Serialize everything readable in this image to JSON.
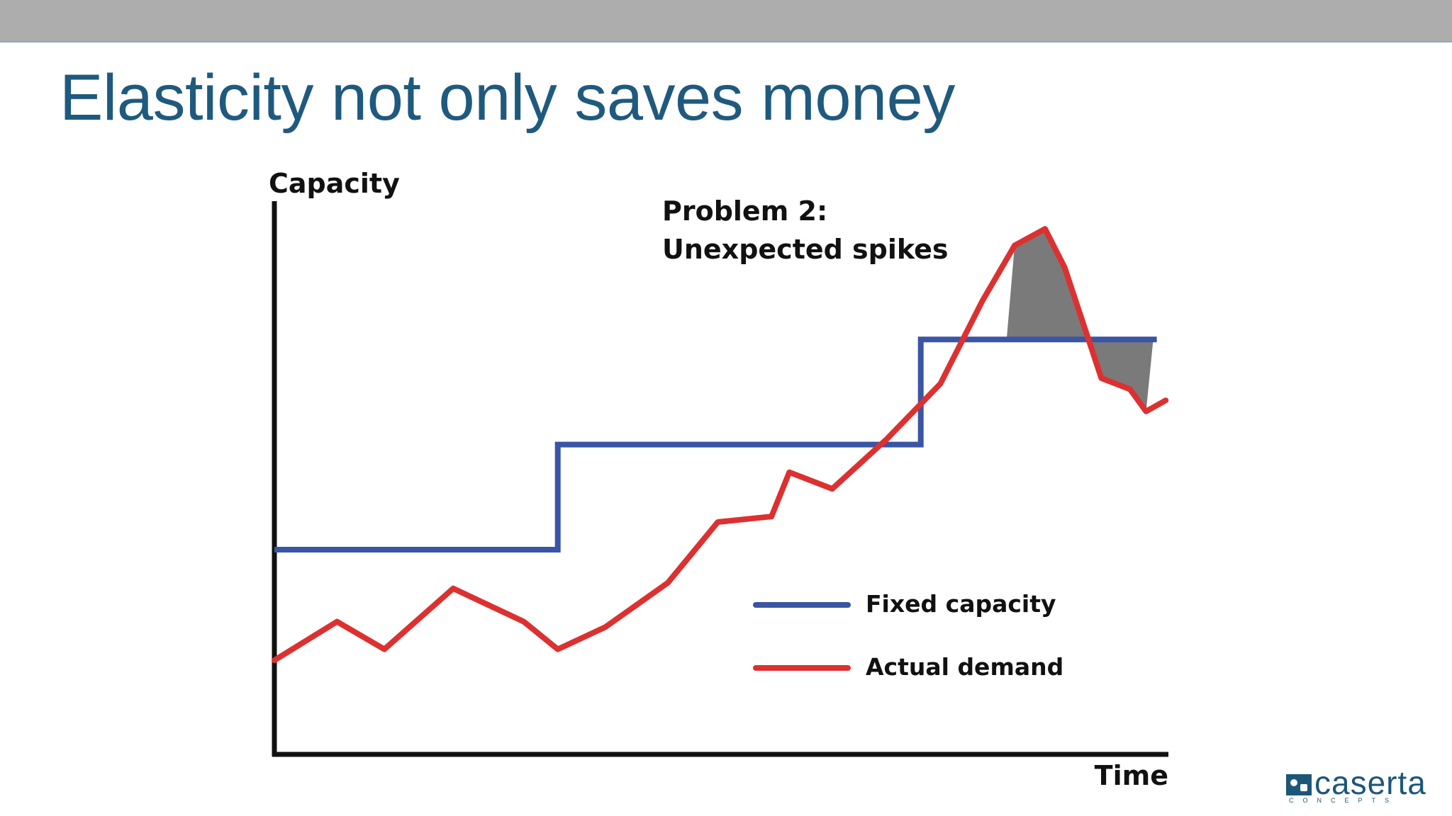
{
  "slide": {
    "title": "Elasticity not only saves money"
  },
  "logo": {
    "name": "caserta",
    "tagline": "CONCEPTS",
    "color": "#1d5778"
  },
  "chart_data": {
    "type": "line",
    "ylabel": "Capacity",
    "xlabel": "Time",
    "annotation": [
      "Problem 2:",
      "Unexpected spikes"
    ],
    "legend_position": "bottom-right",
    "grid": false,
    "xlim": [
      0,
      100
    ],
    "ylim": [
      0,
      100
    ],
    "series": [
      {
        "name": "Fixed capacity",
        "color": "#3a55a3",
        "step": true,
        "x": [
          0,
          31.7,
          31.7,
          72.3,
          72.3,
          98.7
        ],
        "y": [
          37,
          37,
          56,
          56,
          75,
          75
        ]
      },
      {
        "name": "Actual demand",
        "color": "#dd3030",
        "x": [
          0,
          7,
          12.3,
          20,
          27.9,
          31.7,
          37,
          44,
          49.6,
          55.6,
          57.6,
          62.4,
          68.5,
          74.5,
          79.2,
          82.8,
          86.2,
          88.4,
          92.5,
          95.7,
          97.5,
          99.7
        ],
        "y": [
          17,
          24,
          19,
          30,
          24,
          19,
          23,
          31,
          42,
          43,
          51,
          48,
          57,
          67,
          82,
          92,
          95,
          88,
          68,
          66,
          62,
          64
        ]
      }
    ],
    "shaded_region": {
      "description_color": "#7a7a7a",
      "between": [
        "Actual demand",
        "Fixed capacity"
      ],
      "x_range": [
        81.9,
        98.3
      ]
    }
  }
}
